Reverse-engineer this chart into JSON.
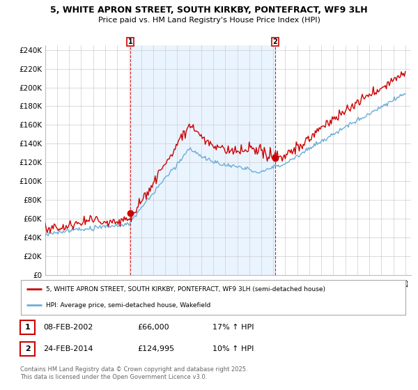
{
  "title": "5, WHITE APRON STREET, SOUTH KIRKBY, PONTEFRACT, WF9 3LH",
  "subtitle": "Price paid vs. HM Land Registry's House Price Index (HPI)",
  "ylabel_ticks": [
    "£0",
    "£20K",
    "£40K",
    "£60K",
    "£80K",
    "£100K",
    "£120K",
    "£140K",
    "£160K",
    "£180K",
    "£200K",
    "£220K",
    "£240K"
  ],
  "ytick_values": [
    0,
    20000,
    40000,
    60000,
    80000,
    100000,
    120000,
    140000,
    160000,
    180000,
    200000,
    220000,
    240000
  ],
  "ylim": [
    0,
    245000
  ],
  "xlim_start": 1995.0,
  "xlim_end": 2025.5,
  "hpi_color": "#6baed6",
  "price_color": "#cc0000",
  "shade_color": "#ddeeff",
  "marker1_x": 2002.1,
  "marker1_y": 66000,
  "marker2_x": 2014.15,
  "marker2_y": 124995,
  "legend_line1": "5, WHITE APRON STREET, SOUTH KIRKBY, PONTEFRACT, WF9 3LH (semi-detached house)",
  "legend_line2": "HPI: Average price, semi-detached house, Wakefield",
  "footer": "Contains HM Land Registry data © Crown copyright and database right 2025.\nThis data is licensed under the Open Government Licence v3.0.",
  "background_color": "#ffffff",
  "grid_color": "#cccccc",
  "ann1_date": "08-FEB-2002",
  "ann1_price": "£66,000",
  "ann1_hpi": "17% ↑ HPI",
  "ann2_date": "24-FEB-2014",
  "ann2_price": "£124,995",
  "ann2_hpi": "10% ↑ HPI"
}
